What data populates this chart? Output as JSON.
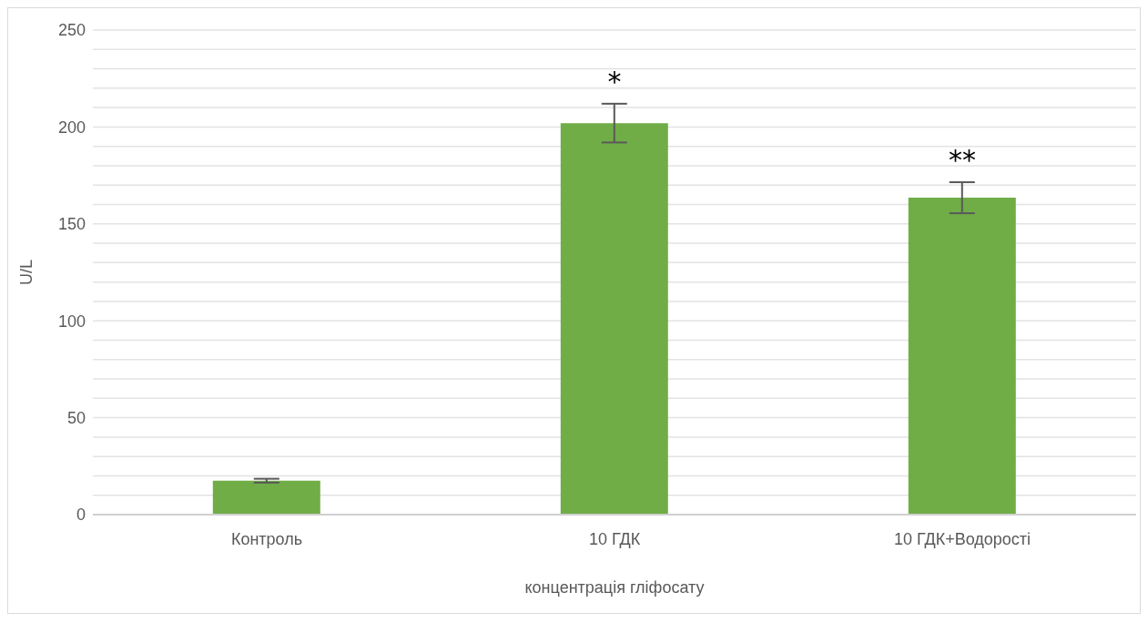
{
  "chart_data": {
    "type": "bar",
    "xlabel": "концентрація гліфосату",
    "ylabel": "U/L",
    "categories": [
      "Контроль",
      "10 ГДК",
      "10 ГДК+Водорості"
    ],
    "values": [
      17.5,
      202,
      163.5
    ],
    "color": "#70ad47",
    "errors": [
      1,
      10,
      8
    ],
    "ylim": [
      0,
      250
    ],
    "yticks": [
      0,
      {
        "value": 10,
        "label": null
      },
      {
        "value": 20,
        "label": null
      },
      {
        "value": 30,
        "label": null
      },
      {
        "value": 40,
        "label": null
      },
      50,
      {
        "value": 60,
        "label": null
      },
      {
        "value": 70,
        "label": null
      },
      {
        "value": 80,
        "label": null
      },
      {
        "value": 90,
        "label": null
      },
      100,
      {
        "value": 110,
        "label": null
      },
      {
        "value": 120,
        "label": null
      },
      {
        "value": 130,
        "label": null
      },
      {
        "value": 140,
        "label": null
      },
      150,
      {
        "value": 160,
        "label": null
      },
      {
        "value": 170,
        "label": null
      },
      {
        "value": 180,
        "label": null
      },
      {
        "value": 190,
        "label": null
      },
      200,
      {
        "value": 210,
        "label": null
      },
      {
        "value": 220,
        "label": null
      },
      {
        "value": 230,
        "label": null
      },
      {
        "value": 240,
        "label": null
      },
      250
    ],
    "grid": "y",
    "annotations": [
      "*",
      "**"
    ]
  }
}
